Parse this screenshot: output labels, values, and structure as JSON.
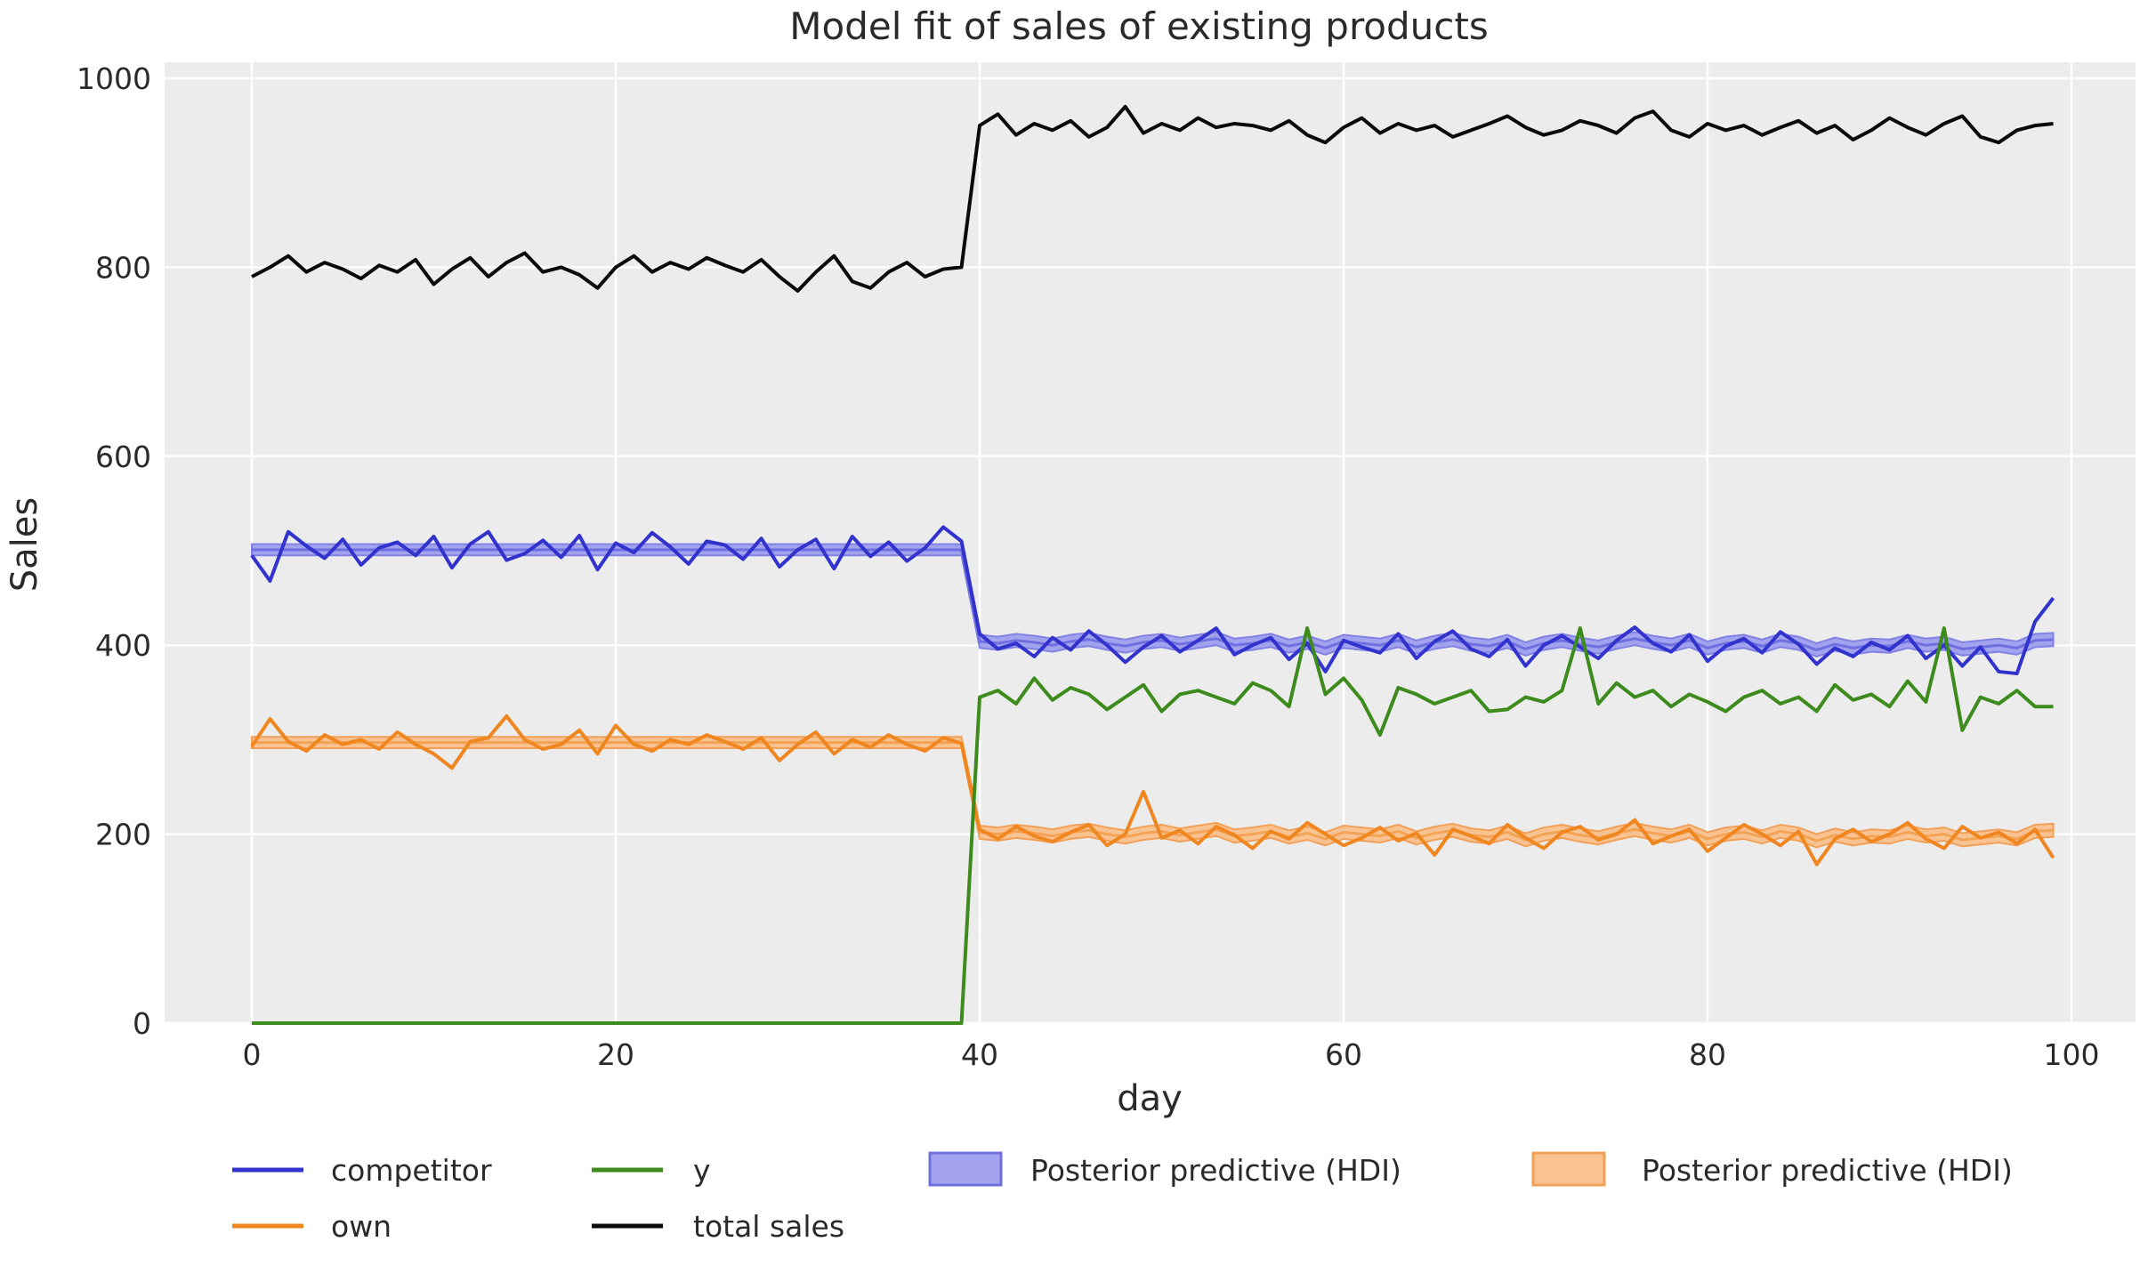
{
  "title": "Model fit of sales of existing products",
  "colors": {
    "page_background": "#ffffff",
    "plot_background": "#ececec",
    "grid": "#ffffff",
    "text": "#2a2a2a",
    "competitor_blue": "#3232cd",
    "own_orange": "#f0861f",
    "y_green": "#3d8b1d",
    "total_black": "#0a0a0a",
    "blue_band_fill": "#a2a2ef",
    "blue_band_edge": "#8282e4",
    "blue_band_mean": "#6f6fe0",
    "orange_band_fill": "#f9c291",
    "orange_band_edge": "#f2a058",
    "orange_band_mean": "#f3a356"
  },
  "chart_data": {
    "type": "line",
    "title": "Model fit of sales of existing products",
    "xlabel": "day",
    "ylabel": "Sales",
    "xlim": [
      -4.8,
      103.5
    ],
    "ylim": [
      0,
      1017
    ],
    "x_ticks": [
      0,
      20,
      40,
      60,
      80,
      100
    ],
    "y_ticks": [
      0,
      200,
      400,
      600,
      800,
      1000
    ],
    "grid": true,
    "legend_position": "below",
    "x_start_day": 0,
    "intervention_day": 40,
    "series": [
      {
        "name": "competitor",
        "color": "#3232cd",
        "values": [
          495,
          468,
          520,
          505,
          492,
          512,
          485,
          503,
          509,
          495,
          515,
          482,
          507,
          520,
          490,
          497,
          511,
          493,
          516,
          480,
          508,
          498,
          519,
          504,
          486,
          510,
          506,
          491,
          513,
          483,
          501,
          512,
          481,
          515,
          494,
          509,
          489,
          503,
          525,
          510,
          412,
          396,
          402,
          388,
          408,
          395,
          415,
          400,
          382,
          398,
          410,
          393,
          405,
          418,
          390,
          400,
          408,
          385,
          402,
          372,
          405,
          398,
          392,
          412,
          386,
          404,
          415,
          396,
          388,
          406,
          378,
          400,
          410,
          398,
          386,
          405,
          419,
          402,
          393,
          411,
          383,
          399,
          407,
          392,
          414,
          401,
          380,
          397,
          388,
          403,
          395,
          410,
          386,
          400,
          378,
          398,
          372,
          370,
          425,
          450
        ]
      },
      {
        "name": "own",
        "color": "#f0861f",
        "values": [
          293,
          322,
          298,
          288,
          305,
          295,
          300,
          290,
          308,
          295,
          285,
          270,
          298,
          302,
          325,
          300,
          290,
          295,
          310,
          285,
          315,
          295,
          288,
          300,
          295,
          305,
          298,
          290,
          302,
          278,
          295,
          308,
          285,
          300,
          292,
          305,
          295,
          288,
          302,
          296,
          205,
          195,
          208,
          198,
          192,
          202,
          210,
          188,
          200,
          245,
          196,
          204,
          190,
          208,
          199,
          185,
          203,
          195,
          212,
          200,
          188,
          196,
          207,
          193,
          201,
          178,
          205,
          198,
          190,
          210,
          196,
          185,
          202,
          208,
          194,
          200,
          215,
          190,
          198,
          205,
          182,
          196,
          210,
          200,
          188,
          203,
          168,
          195,
          205,
          192,
          200,
          212,
          195,
          185,
          208,
          196,
          202,
          190,
          205,
          175
        ]
      },
      {
        "name": "y",
        "color": "#3d8b1d",
        "values": [
          0,
          0,
          0,
          0,
          0,
          0,
          0,
          0,
          0,
          0,
          0,
          0,
          0,
          0,
          0,
          0,
          0,
          0,
          0,
          0,
          0,
          0,
          0,
          0,
          0,
          0,
          0,
          0,
          0,
          0,
          0,
          0,
          0,
          0,
          0,
          0,
          0,
          0,
          0,
          0,
          345,
          352,
          338,
          365,
          342,
          355,
          348,
          332,
          345,
          358,
          330,
          348,
          352,
          345,
          338,
          360,
          352,
          335,
          418,
          348,
          365,
          342,
          305,
          355,
          348,
          338,
          345,
          352,
          330,
          332,
          345,
          340,
          352,
          418,
          338,
          360,
          345,
          352,
          335,
          348,
          340,
          330,
          345,
          352,
          338,
          345,
          330,
          358,
          342,
          348,
          335,
          362,
          340,
          418,
          310,
          345,
          338,
          352,
          335,
          335
        ]
      },
      {
        "name": "total sales",
        "color": "#0a0a0a",
        "values": [
          790,
          800,
          812,
          795,
          805,
          798,
          788,
          802,
          795,
          808,
          782,
          798,
          810,
          790,
          805,
          815,
          795,
          800,
          792,
          778,
          800,
          812,
          795,
          805,
          798,
          810,
          802,
          795,
          808,
          790,
          775,
          795,
          812,
          785,
          778,
          795,
          805,
          790,
          798,
          800,
          950,
          962,
          940,
          952,
          945,
          955,
          938,
          948,
          970,
          942,
          952,
          945,
          958,
          948,
          952,
          950,
          945,
          955,
          940,
          932,
          948,
          958,
          942,
          952,
          945,
          950,
          938,
          945,
          952,
          960,
          948,
          940,
          945,
          955,
          950,
          942,
          958,
          965,
          945,
          938,
          952,
          945,
          950,
          940,
          948,
          955,
          942,
          950,
          935,
          945,
          958,
          948,
          940,
          952,
          960,
          938,
          932,
          945,
          950,
          952
        ]
      }
    ],
    "bands": [
      {
        "name": "Posterior predictive (HDI)",
        "applies_to": "competitor",
        "fill": "#a2a2ef",
        "edge": "#8282e4",
        "mean_color": "#6f6fe0",
        "segments": [
          {
            "start_day": 0,
            "end_day": 39,
            "center": 501,
            "half_width": 6
          },
          {
            "start_day": 40,
            "end_day": 99,
            "half_width": 7,
            "centers": [
              404,
              402,
              405,
              403,
              400,
              404,
              406,
              402,
              399,
              403,
              405,
              401,
              404,
              407,
              400,
              402,
              405,
              399,
              403,
              397,
              404,
              402,
              400,
              405,
              398,
              403,
              406,
              401,
              399,
              404,
              396,
              402,
              405,
              401,
              398,
              403,
              407,
              403,
              400,
              405,
              397,
              402,
              404,
              399,
              405,
              402,
              395,
              401,
              397,
              400,
              399,
              404,
              400,
              402,
              396,
              398,
              400,
              397,
              405,
              406
            ]
          }
        ]
      },
      {
        "name": "Posterior predictive (HDI)",
        "applies_to": "own",
        "fill": "#f9c291",
        "edge": "#f2a058",
        "mean_color": "#f3a356",
        "segments": [
          {
            "start_day": 0,
            "end_day": 39,
            "center": 297,
            "half_width": 6
          },
          {
            "start_day": 40,
            "end_day": 99,
            "half_width": 7,
            "centers": [
              202,
              200,
              203,
              201,
              198,
              202,
              204,
              200,
              197,
              201,
              203,
              199,
              202,
              205,
              198,
              200,
              203,
              197,
              201,
              195,
              202,
              200,
              198,
              203,
              196,
              201,
              204,
              199,
              197,
              202,
              194,
              200,
              203,
              199,
              196,
              201,
              205,
              201,
              198,
              203,
              195,
              200,
              202,
              197,
              203,
              200,
              193,
              199,
              195,
              198,
              197,
              202,
              198,
              200,
              194,
              196,
              198,
              195,
              203,
              204
            ]
          }
        ]
      }
    ]
  },
  "legend": {
    "lines": [
      {
        "label": "competitor",
        "color": "#3232cd"
      },
      {
        "label": "own",
        "color": "#f0861f"
      },
      {
        "label": "y",
        "color": "#3d8b1d"
      },
      {
        "label": "total sales",
        "color": "#0a0a0a"
      }
    ],
    "patches": [
      {
        "label": "Posterior predictive (HDI)",
        "fill": "#a2a2ef",
        "edge": "#7070dd"
      },
      {
        "label": "Posterior predictive (HDI)",
        "fill": "#f9c291",
        "edge": "#f2a058"
      }
    ]
  }
}
